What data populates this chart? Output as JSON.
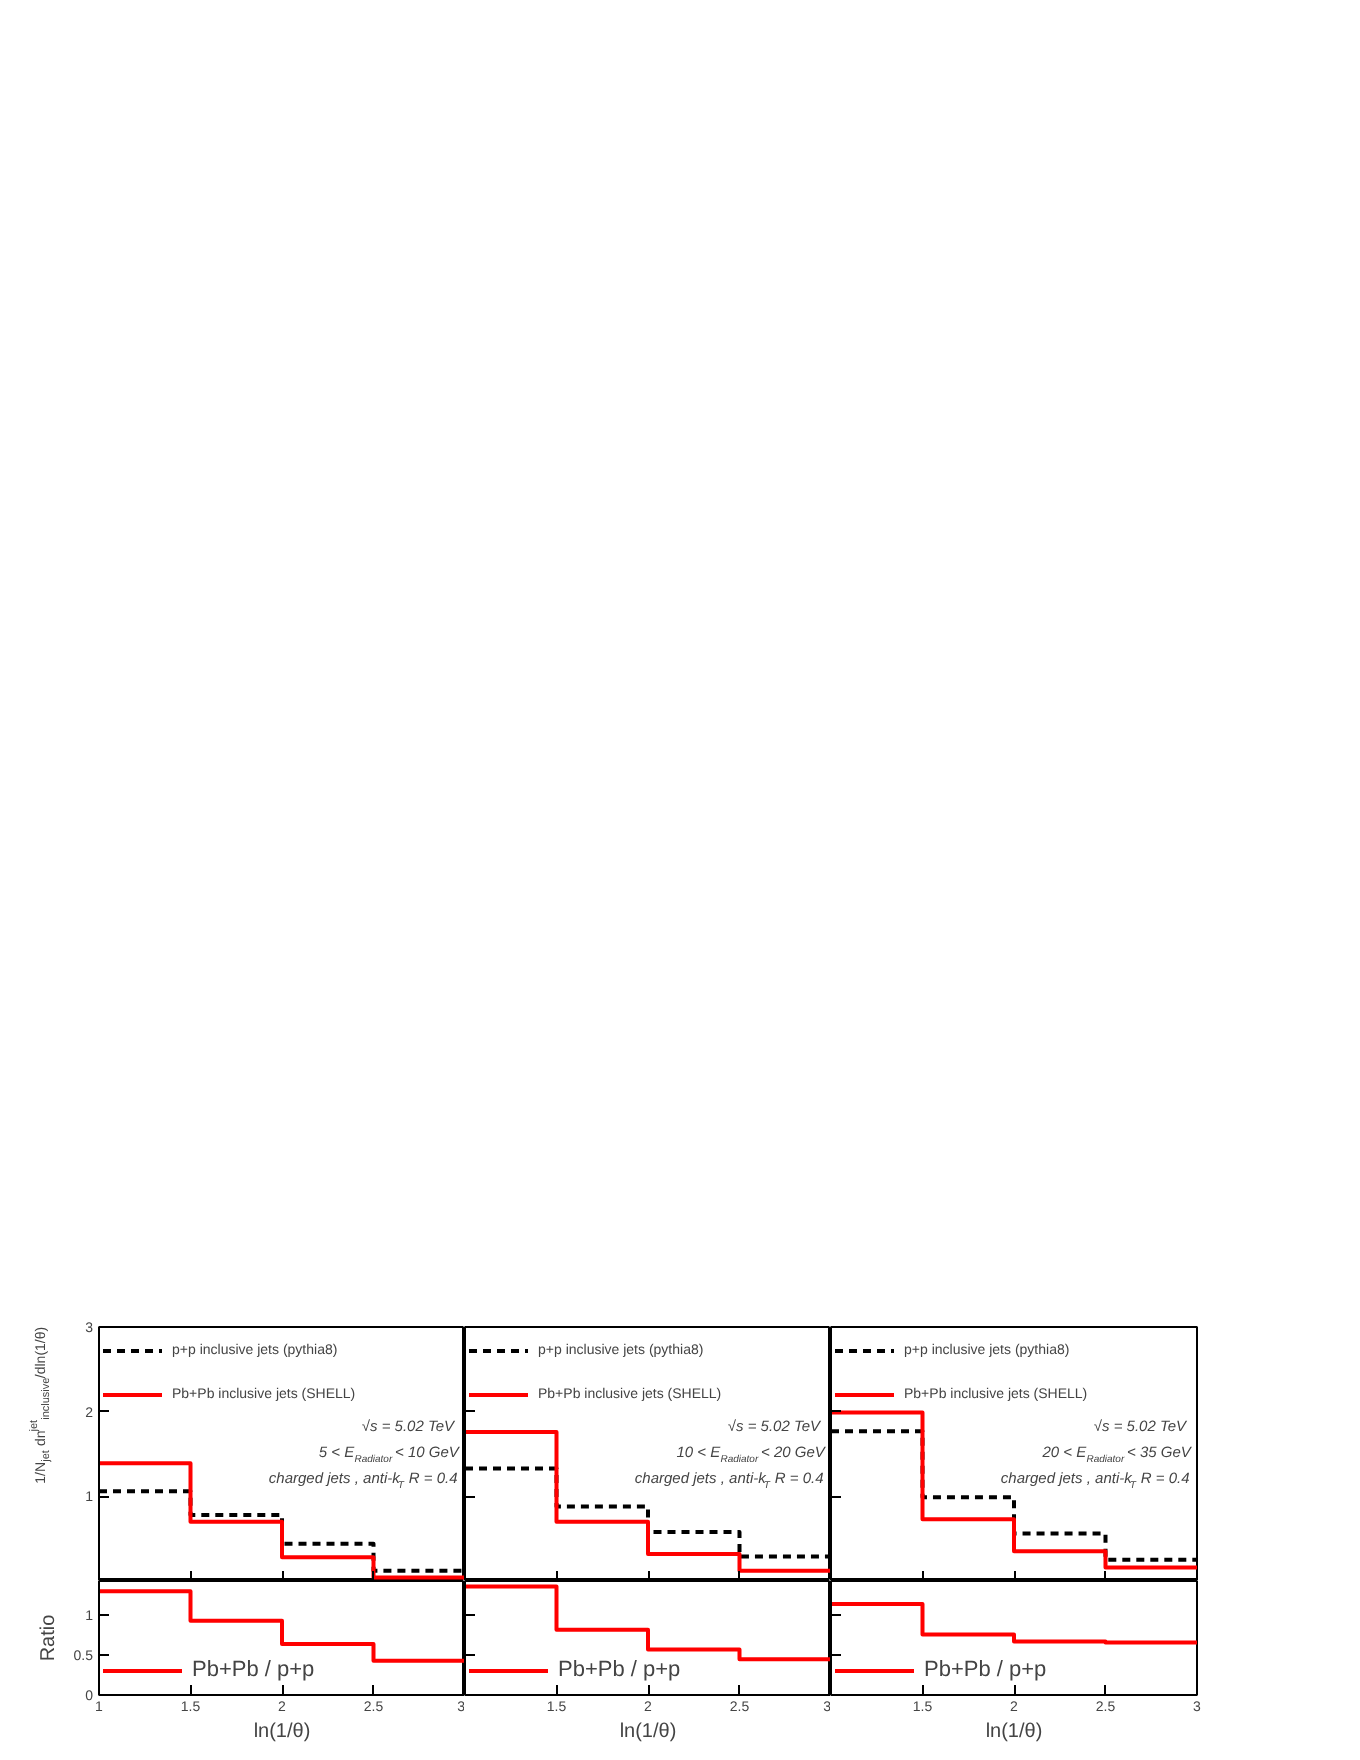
{
  "chart_data": [
    {
      "type": "histogram",
      "bins": [
        1,
        1.5,
        2,
        2.5,
        3
      ],
      "xlim": [
        1,
        3
      ],
      "xticks": [
        1,
        1.5,
        2,
        2.5,
        3
      ],
      "ylim": [
        0,
        3
      ],
      "yticks": [
        1,
        2,
        3
      ],
      "ylabel": "1/N$_{jet}$ dn$^{jet}$$_{inclusive}$/dln(1/θ)",
      "tick_labels": "y",
      "legend": "top left",
      "grid": false,
      "annotations": [
        "√s = 5.02 TeV",
        "5 < E$_{Radiator}$ < 10 GeV",
        "charged jets , anti-k$_{T}$ R = 0.4"
      ],
      "series": [
        {
          "name": "p+p inclusive jets (pythia8)",
          "color": "#000000",
          "line_style": "dashed",
          "values": [
            1.06,
            0.78,
            0.44,
            0.12
          ]
        },
        {
          "name": "Pb+Pb inclusive jets (SHELL)",
          "color": "#ff0000",
          "line_style": "solid",
          "values": [
            1.39,
            0.7,
            0.28,
            0.04
          ]
        }
      ]
    },
    {
      "type": "histogram",
      "bins": [
        1,
        1.5,
        2,
        2.5,
        3
      ],
      "xlim": [
        1,
        3
      ],
      "xticks": [
        1,
        1.5,
        2,
        2.5,
        3
      ],
      "ylim": [
        0,
        3
      ],
      "yticks": [
        1,
        2,
        3
      ],
      "tick_labels": false,
      "legend": "top left",
      "grid": false,
      "annotations": [
        "√s = 5.02 TeV",
        "10 < E$_{Radiator}$ < 20 GeV",
        "charged jets , anti-k$_{T}$ R = 0.4"
      ],
      "series": [
        {
          "name": "p+p inclusive jets (pythia8)",
          "color": "#000000",
          "line_style": "dashed",
          "values": [
            1.33,
            0.88,
            0.58,
            0.29
          ]
        },
        {
          "name": "Pb+Pb inclusive jets (SHELL)",
          "color": "#ff0000",
          "line_style": "solid",
          "values": [
            1.76,
            0.7,
            0.32,
            0.12
          ]
        }
      ]
    },
    {
      "type": "histogram",
      "bins": [
        1,
        1.5,
        2,
        2.5,
        3
      ],
      "xlim": [
        1,
        3
      ],
      "xticks": [
        1,
        1.5,
        2,
        2.5,
        3
      ],
      "ylim": [
        0,
        3
      ],
      "yticks": [
        1,
        2,
        3
      ],
      "tick_labels": false,
      "legend": "top left",
      "grid": false,
      "annotations": [
        "√s = 5.02 TeV",
        "20 < E$_{Radiator}$ < 35 GeV",
        "charged jets , anti-k$_{T}$ R = 0.4"
      ],
      "series": [
        {
          "name": "p+p inclusive jets (pythia8)",
          "color": "#000000",
          "line_style": "dashed",
          "values": [
            1.77,
            0.99,
            0.56,
            0.25
          ]
        },
        {
          "name": "Pb+Pb inclusive jets (SHELL)",
          "color": "#ff0000",
          "line_style": "solid",
          "values": [
            1.99,
            0.73,
            0.35,
            0.16
          ]
        }
      ]
    },
    {
      "type": "histogram",
      "bins": [
        1,
        1.5,
        2,
        2.5,
        3
      ],
      "xlim": [
        1,
        3
      ],
      "xticks": [
        1,
        1.5,
        2,
        2.5,
        3
      ],
      "ylim": [
        0,
        1.43
      ],
      "yticks": [
        0,
        0.5,
        1
      ],
      "xlabel": "ln(1/θ)",
      "ylabel": "Ratio",
      "legend": "bottom left",
      "grid": false,
      "series": [
        {
          "name": "Pb+Pb / p+p",
          "color": "#ff0000",
          "line_style": "solid",
          "values": [
            1.3,
            0.93,
            0.64,
            0.43
          ]
        }
      ]
    },
    {
      "type": "histogram",
      "bins": [
        1,
        1.5,
        2,
        2.5,
        3
      ],
      "xlim": [
        1,
        3
      ],
      "xticks": [
        {
          "value": 1,
          "label": null
        },
        1.5,
        2,
        2.5,
        3
      ],
      "ylim": [
        0,
        1.43
      ],
      "yticks": [
        0,
        0.5,
        1
      ],
      "xlabel": "ln(1/θ)",
      "tick_labels": "x",
      "legend": "bottom left",
      "grid": false,
      "series": [
        {
          "name": "Pb+Pb / p+p",
          "color": "#ff0000",
          "line_style": "solid",
          "values": [
            1.36,
            0.82,
            0.57,
            0.45
          ]
        }
      ]
    },
    {
      "type": "histogram",
      "bins": [
        1,
        1.5,
        2,
        2.5,
        3
      ],
      "xlim": [
        1,
        3
      ],
      "xticks": [
        {
          "value": 1,
          "label": null
        },
        1.5,
        2,
        2.5,
        3
      ],
      "ylim": [
        0,
        1.43
      ],
      "yticks": [
        0,
        0.5,
        1
      ],
      "xlabel": "ln(1/θ)",
      "tick_labels": "x",
      "legend": "bottom left",
      "grid": false,
      "series": [
        {
          "name": "Pb+Pb / p+p",
          "color": "#ff0000",
          "line_style": "solid",
          "values": [
            1.14,
            0.76,
            0.67,
            0.66
          ]
        }
      ]
    }
  ]
}
